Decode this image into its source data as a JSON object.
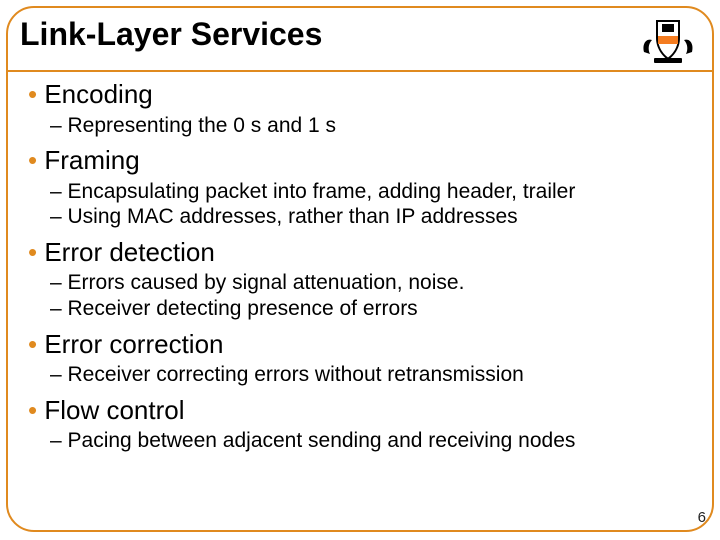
{
  "colors": {
    "border": "#e08a1f",
    "shield": "#000000",
    "shield_inner": "#f47c20",
    "background": "#ffffff",
    "text": "#000000"
  },
  "title": "Link-Layer Services",
  "page_number": "6",
  "sections": [
    {
      "bullet": "Encoding",
      "subs": [
        "Representing the 0 s and 1 s"
      ]
    },
    {
      "bullet": "Framing",
      "subs": [
        "Encapsulating packet into frame, adding header, trailer",
        "Using MAC addresses, rather than IP addresses"
      ]
    },
    {
      "bullet": "Error detection",
      "subs": [
        "Errors caused by signal attenuation, noise.",
        "Receiver detecting presence of errors"
      ]
    },
    {
      "bullet": "Error correction",
      "subs": [
        "Receiver correcting errors without retransmission"
      ]
    },
    {
      "bullet": "Flow control",
      "subs": [
        "Pacing between adjacent sending and receiving nodes"
      ]
    }
  ]
}
